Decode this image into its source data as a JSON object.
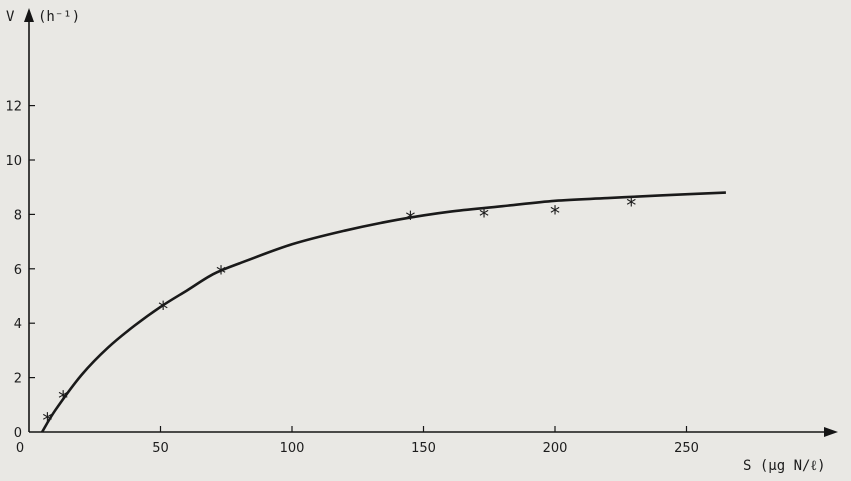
{
  "chart_data": {
    "type": "scatter",
    "ylabel_symbol": "V",
    "ylabel_unit": "(h⁻¹)",
    "xlabel": "S (µg N/ℓ)",
    "xlim": [
      0,
      290
    ],
    "ylim": [
      0,
      13
    ],
    "x_ticks": [
      0,
      50,
      100,
      150,
      200,
      250
    ],
    "y_ticks": [
      0,
      2,
      4,
      6,
      8,
      10,
      12
    ],
    "grid": false,
    "points": [
      {
        "x": 7,
        "y": 0.5
      },
      {
        "x": 13,
        "y": 1.3
      },
      {
        "x": 51,
        "y": 4.6
      },
      {
        "x": 73,
        "y": 5.9
      },
      {
        "x": 145,
        "y": 7.9
      },
      {
        "x": 173,
        "y": 8.0
      },
      {
        "x": 200,
        "y": 8.1
      },
      {
        "x": 229,
        "y": 8.4
      }
    ],
    "fit_curve": {
      "x": [
        5,
        10,
        20,
        30,
        40,
        50,
        60,
        70,
        80,
        100,
        120,
        140,
        160,
        180,
        200,
        220,
        240,
        265
      ],
      "y": [
        0.0,
        0.8,
        2.1,
        3.1,
        3.9,
        4.6,
        5.2,
        5.8,
        6.2,
        6.9,
        7.4,
        7.8,
        8.1,
        8.3,
        8.5,
        8.6,
        8.7,
        8.8
      ]
    }
  }
}
